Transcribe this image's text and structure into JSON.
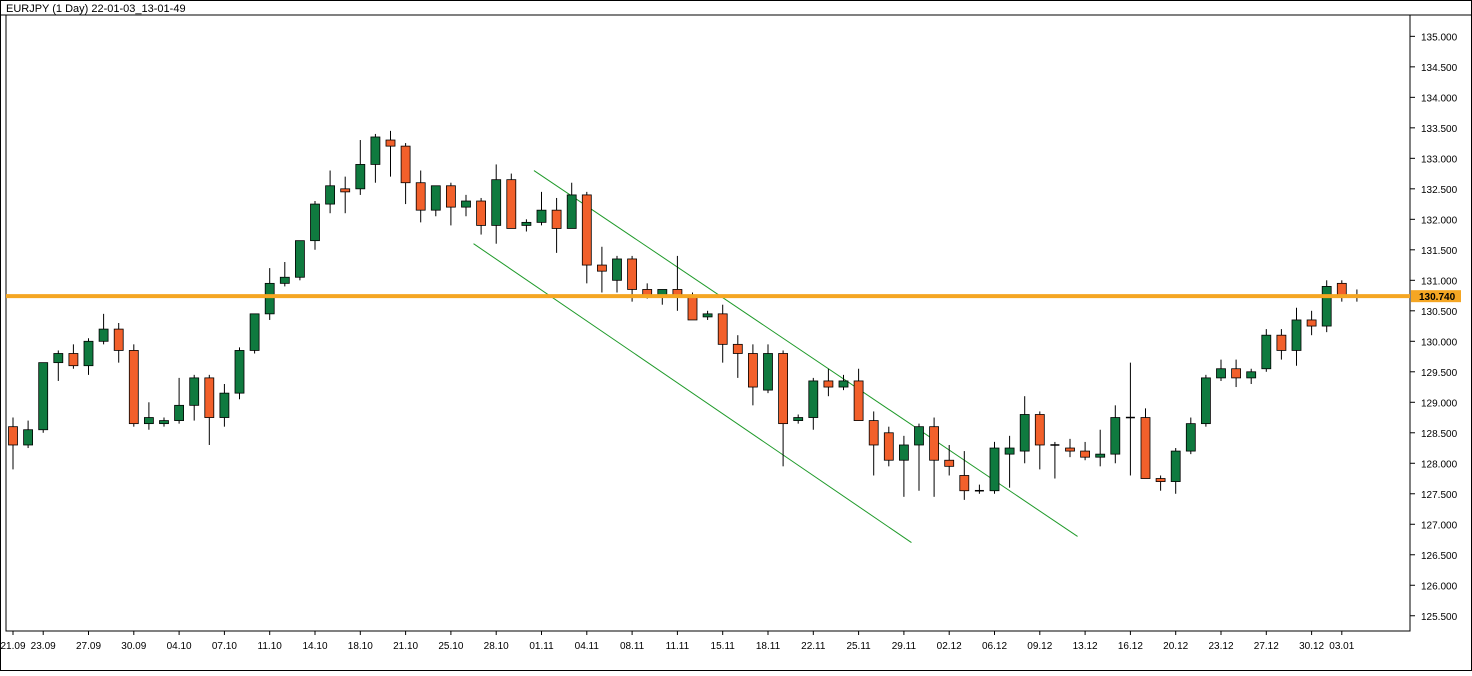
{
  "title": "EURJPY (1 Day) 22-01-03_13-01-49",
  "colors": {
    "up": "#0f7a3f",
    "down": "#f2602b",
    "wick": "#000000",
    "horizontal_line": "#f5a623",
    "channel_line": "#1f9a2a",
    "frame": "#000000",
    "price_label_bg": "#f5a623"
  },
  "chart_data": {
    "type": "candlestick",
    "symbol": "EURJPY",
    "timeframe": "1 Day",
    "ylim": [
      125.25,
      135.35
    ],
    "y_ticks": [
      "125.500",
      "126.000",
      "126.500",
      "127.000",
      "127.500",
      "128.000",
      "128.500",
      "129.000",
      "129.500",
      "130.000",
      "130.500",
      "131.000",
      "131.500",
      "132.000",
      "132.500",
      "133.000",
      "133.500",
      "134.000",
      "134.500",
      "135.000"
    ],
    "x_tick_labels": [
      {
        "index": 0,
        "label": "21.09"
      },
      {
        "index": 2,
        "label": "23.09"
      },
      {
        "index": 5,
        "label": "27.09"
      },
      {
        "index": 8,
        "label": "30.09"
      },
      {
        "index": 11,
        "label": "04.10"
      },
      {
        "index": 14,
        "label": "07.10"
      },
      {
        "index": 17,
        "label": "11.10"
      },
      {
        "index": 20,
        "label": "14.10"
      },
      {
        "index": 23,
        "label": "18.10"
      },
      {
        "index": 26,
        "label": "21.10"
      },
      {
        "index": 29,
        "label": "25.10"
      },
      {
        "index": 32,
        "label": "28.10"
      },
      {
        "index": 35,
        "label": "01.11"
      },
      {
        "index": 38,
        "label": "04.11"
      },
      {
        "index": 41,
        "label": "08.11"
      },
      {
        "index": 44,
        "label": "11.11"
      },
      {
        "index": 47,
        "label": "15.11"
      },
      {
        "index": 50,
        "label": "18.11"
      },
      {
        "index": 53,
        "label": "22.11"
      },
      {
        "index": 56,
        "label": "25.11"
      },
      {
        "index": 59,
        "label": "29.11"
      },
      {
        "index": 62,
        "label": "02.12"
      },
      {
        "index": 65,
        "label": "06.12"
      },
      {
        "index": 68,
        "label": "09.12"
      },
      {
        "index": 71,
        "label": "13.12"
      },
      {
        "index": 74,
        "label": "16.12"
      },
      {
        "index": 77,
        "label": "20.12"
      },
      {
        "index": 80,
        "label": "23.12"
      },
      {
        "index": 83,
        "label": "27.12"
      },
      {
        "index": 86,
        "label": "30.12"
      },
      {
        "index": 88,
        "label": "03.01"
      }
    ],
    "candles": [
      {
        "o": 128.6,
        "h": 128.75,
        "l": 127.9,
        "c": 128.3
      },
      {
        "o": 128.3,
        "h": 128.7,
        "l": 128.25,
        "c": 128.55
      },
      {
        "o": 128.55,
        "h": 129.65,
        "l": 128.5,
        "c": 129.65
      },
      {
        "o": 129.65,
        "h": 129.85,
        "l": 129.35,
        "c": 129.8
      },
      {
        "o": 129.8,
        "h": 129.95,
        "l": 129.55,
        "c": 129.6
      },
      {
        "o": 129.6,
        "h": 130.05,
        "l": 129.45,
        "c": 130.0
      },
      {
        "o": 130.0,
        "h": 130.45,
        "l": 129.95,
        "c": 130.2
      },
      {
        "o": 130.2,
        "h": 130.3,
        "l": 129.65,
        "c": 129.85
      },
      {
        "o": 129.85,
        "h": 129.95,
        "l": 128.6,
        "c": 128.65
      },
      {
        "o": 128.65,
        "h": 129.0,
        "l": 128.55,
        "c": 128.75
      },
      {
        "o": 128.65,
        "h": 128.75,
        "l": 128.6,
        "c": 128.7
      },
      {
        "o": 128.7,
        "h": 129.4,
        "l": 128.65,
        "c": 128.95
      },
      {
        "o": 128.95,
        "h": 129.45,
        "l": 128.7,
        "c": 129.4
      },
      {
        "o": 129.4,
        "h": 129.45,
        "l": 128.3,
        "c": 128.75
      },
      {
        "o": 128.75,
        "h": 129.3,
        "l": 128.6,
        "c": 129.15
      },
      {
        "o": 129.15,
        "h": 129.9,
        "l": 129.05,
        "c": 129.85
      },
      {
        "o": 129.85,
        "h": 130.45,
        "l": 129.8,
        "c": 130.45
      },
      {
        "o": 130.45,
        "h": 131.2,
        "l": 130.35,
        "c": 130.95
      },
      {
        "o": 130.95,
        "h": 131.3,
        "l": 130.9,
        "c": 131.05
      },
      {
        "o": 131.05,
        "h": 131.65,
        "l": 131.0,
        "c": 131.65
      },
      {
        "o": 131.65,
        "h": 132.3,
        "l": 131.5,
        "c": 132.25
      },
      {
        "o": 132.25,
        "h": 132.8,
        "l": 132.1,
        "c": 132.55
      },
      {
        "o": 132.5,
        "h": 132.7,
        "l": 132.1,
        "c": 132.45
      },
      {
        "o": 132.5,
        "h": 133.3,
        "l": 132.4,
        "c": 132.9
      },
      {
        "o": 132.9,
        "h": 133.4,
        "l": 132.6,
        "c": 133.35
      },
      {
        "o": 133.3,
        "h": 133.45,
        "l": 132.7,
        "c": 133.2
      },
      {
        "o": 133.2,
        "h": 133.25,
        "l": 132.25,
        "c": 132.6
      },
      {
        "o": 132.6,
        "h": 132.8,
        "l": 131.95,
        "c": 132.15
      },
      {
        "o": 132.15,
        "h": 132.55,
        "l": 132.05,
        "c": 132.55
      },
      {
        "o": 132.55,
        "h": 132.6,
        "l": 131.9,
        "c": 132.2
      },
      {
        "o": 132.2,
        "h": 132.4,
        "l": 132.05,
        "c": 132.3
      },
      {
        "o": 132.3,
        "h": 132.35,
        "l": 131.75,
        "c": 131.9
      },
      {
        "o": 131.9,
        "h": 132.9,
        "l": 131.6,
        "c": 132.65
      },
      {
        "o": 132.65,
        "h": 132.75,
        "l": 131.85,
        "c": 131.85
      },
      {
        "o": 131.9,
        "h": 132.0,
        "l": 131.8,
        "c": 131.95
      },
      {
        "o": 131.95,
        "h": 132.45,
        "l": 131.9,
        "c": 132.15
      },
      {
        "o": 132.15,
        "h": 132.35,
        "l": 131.45,
        "c": 131.85
      },
      {
        "o": 131.85,
        "h": 132.6,
        "l": 131.85,
        "c": 132.4
      },
      {
        "o": 132.4,
        "h": 132.45,
        "l": 130.95,
        "c": 131.25
      },
      {
        "o": 131.25,
        "h": 131.55,
        "l": 130.8,
        "c": 131.15
      },
      {
        "o": 131.0,
        "h": 131.4,
        "l": 130.8,
        "c": 131.35
      },
      {
        "o": 131.35,
        "h": 131.4,
        "l": 130.65,
        "c": 130.85
      },
      {
        "o": 130.85,
        "h": 130.95,
        "l": 130.7,
        "c": 130.75
      },
      {
        "o": 130.75,
        "h": 130.85,
        "l": 130.6,
        "c": 130.85
      },
      {
        "o": 130.85,
        "h": 131.4,
        "l": 130.5,
        "c": 130.75
      },
      {
        "o": 130.75,
        "h": 130.8,
        "l": 130.4,
        "c": 130.35
      },
      {
        "o": 130.4,
        "h": 130.5,
        "l": 130.35,
        "c": 130.45
      },
      {
        "o": 130.45,
        "h": 130.6,
        "l": 129.65,
        "c": 129.95
      },
      {
        "o": 129.95,
        "h": 130.1,
        "l": 129.4,
        "c": 129.8
      },
      {
        "o": 129.8,
        "h": 129.95,
        "l": 128.95,
        "c": 129.25
      },
      {
        "o": 129.2,
        "h": 129.95,
        "l": 129.15,
        "c": 129.8
      },
      {
        "o": 129.8,
        "h": 129.85,
        "l": 127.95,
        "c": 128.65
      },
      {
        "o": 128.7,
        "h": 128.8,
        "l": 128.65,
        "c": 128.75
      },
      {
        "o": 128.75,
        "h": 129.4,
        "l": 128.55,
        "c": 129.35
      },
      {
        "o": 129.35,
        "h": 129.55,
        "l": 129.1,
        "c": 129.25
      },
      {
        "o": 129.25,
        "h": 129.45,
        "l": 129.2,
        "c": 129.35
      },
      {
        "o": 129.35,
        "h": 129.55,
        "l": 128.7,
        "c": 128.7
      },
      {
        "o": 128.7,
        "h": 128.85,
        "l": 127.8,
        "c": 128.3
      },
      {
        "o": 128.5,
        "h": 128.6,
        "l": 127.95,
        "c": 128.05
      },
      {
        "o": 128.05,
        "h": 128.45,
        "l": 127.45,
        "c": 128.3
      },
      {
        "o": 128.3,
        "h": 128.65,
        "l": 127.55,
        "c": 128.6
      },
      {
        "o": 128.6,
        "h": 128.75,
        "l": 127.45,
        "c": 128.05
      },
      {
        "o": 128.05,
        "h": 128.3,
        "l": 127.8,
        "c": 127.95
      },
      {
        "o": 127.8,
        "h": 128.2,
        "l": 127.4,
        "c": 127.55
      },
      {
        "o": 127.55,
        "h": 127.65,
        "l": 127.5,
        "c": 127.55
      },
      {
        "o": 127.55,
        "h": 128.35,
        "l": 127.5,
        "c": 128.25
      },
      {
        "o": 128.15,
        "h": 128.45,
        "l": 127.6,
        "c": 128.25
      },
      {
        "o": 128.2,
        "h": 129.1,
        "l": 128.0,
        "c": 128.8
      },
      {
        "o": 128.8,
        "h": 128.85,
        "l": 127.9,
        "c": 128.3
      },
      {
        "o": 128.3,
        "h": 128.35,
        "l": 127.75,
        "c": 128.3
      },
      {
        "o": 128.25,
        "h": 128.4,
        "l": 128.1,
        "c": 128.2
      },
      {
        "o": 128.2,
        "h": 128.35,
        "l": 128.05,
        "c": 128.1
      },
      {
        "o": 128.1,
        "h": 128.55,
        "l": 127.95,
        "c": 128.15
      },
      {
        "o": 128.15,
        "h": 128.95,
        "l": 128.0,
        "c": 128.75
      },
      {
        "o": 128.75,
        "h": 129.65,
        "l": 127.8,
        "c": 128.75
      },
      {
        "o": 128.75,
        "h": 128.9,
        "l": 127.75,
        "c": 127.75
      },
      {
        "o": 127.75,
        "h": 127.8,
        "l": 127.55,
        "c": 127.7
      },
      {
        "o": 127.7,
        "h": 128.25,
        "l": 127.5,
        "c": 128.2
      },
      {
        "o": 128.2,
        "h": 128.75,
        "l": 128.15,
        "c": 128.65
      },
      {
        "o": 128.65,
        "h": 129.45,
        "l": 128.6,
        "c": 129.4
      },
      {
        "o": 129.4,
        "h": 129.7,
        "l": 129.35,
        "c": 129.55
      },
      {
        "o": 129.55,
        "h": 129.7,
        "l": 129.25,
        "c": 129.4
      },
      {
        "o": 129.4,
        "h": 129.55,
        "l": 129.3,
        "c": 129.5
      },
      {
        "o": 129.55,
        "h": 130.2,
        "l": 129.5,
        "c": 130.1
      },
      {
        "o": 130.1,
        "h": 130.2,
        "l": 129.7,
        "c": 129.85
      },
      {
        "o": 129.85,
        "h": 130.55,
        "l": 129.6,
        "c": 130.35
      },
      {
        "o": 130.35,
        "h": 130.5,
        "l": 130.1,
        "c": 130.25
      },
      {
        "o": 130.25,
        "h": 131.0,
        "l": 130.15,
        "c": 130.9
      },
      {
        "o": 130.95,
        "h": 131.0,
        "l": 130.65,
        "c": 130.75
      },
      {
        "o": 130.75,
        "h": 130.85,
        "l": 130.65,
        "c": 130.74
      }
    ],
    "horizontal_level": {
      "value": 130.74,
      "label": "130.740"
    },
    "channel_lines": [
      {
        "from": {
          "index": 34.5,
          "price": 132.8
        },
        "to": {
          "index": 70.5,
          "price": 126.8
        }
      },
      {
        "from": {
          "index": 30.5,
          "price": 131.6
        },
        "to": {
          "index": 59.5,
          "price": 126.7
        }
      }
    ]
  }
}
